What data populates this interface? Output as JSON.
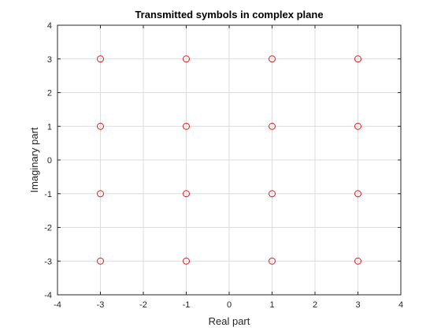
{
  "colors": {
    "marker": "#e41a1c",
    "grid": "#dcdcdc",
    "axis": "#262626",
    "background": "#ffffff"
  },
  "chart_data": {
    "type": "scatter",
    "title": "Transmitted symbols in complex plane",
    "xlabel": "Real part",
    "ylabel": "Imaginary part",
    "xlim": [
      -4,
      4
    ],
    "ylim": [
      -4,
      4
    ],
    "xticks": [
      -4,
      -3,
      -2,
      -1,
      0,
      1,
      2,
      3,
      4
    ],
    "yticks": [
      -4,
      -3,
      -2,
      -1,
      0,
      1,
      2,
      3,
      4
    ],
    "grid": true,
    "marker": "open-circle",
    "series": [
      {
        "points": [
          {
            "x": -3,
            "y": 3
          },
          {
            "x": -1,
            "y": 3
          },
          {
            "x": 1,
            "y": 3
          },
          {
            "x": 3,
            "y": 3
          },
          {
            "x": -3,
            "y": 1
          },
          {
            "x": -1,
            "y": 1
          },
          {
            "x": 1,
            "y": 1
          },
          {
            "x": 3,
            "y": 1
          },
          {
            "x": -3,
            "y": -1
          },
          {
            "x": -1,
            "y": -1
          },
          {
            "x": 1,
            "y": -1
          },
          {
            "x": 3,
            "y": -1
          },
          {
            "x": -3,
            "y": -3
          },
          {
            "x": -1,
            "y": -3
          },
          {
            "x": 1,
            "y": -3
          },
          {
            "x": 3,
            "y": -3
          }
        ]
      }
    ]
  }
}
